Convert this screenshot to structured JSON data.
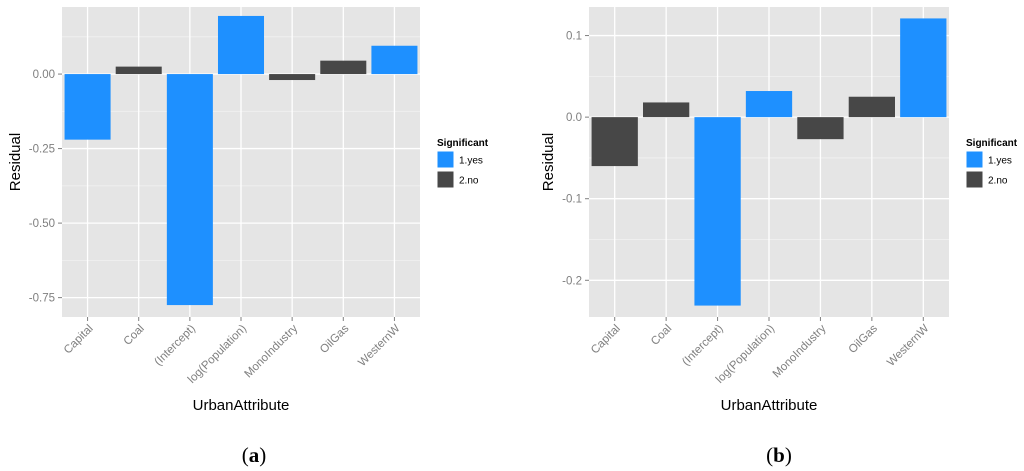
{
  "figure": {
    "panels": [
      {
        "caption_letter": "a",
        "caption_open": "(",
        "caption_close": ")"
      },
      {
        "caption_letter": "b",
        "caption_open": "(",
        "caption_close": ")"
      }
    ]
  },
  "colors": {
    "panel_bg": "#e5e5e5",
    "grid": "#ffffff",
    "yes": "#1e90ff",
    "no": "#474747"
  },
  "chart_data": [
    {
      "type": "bar",
      "categories": [
        "Capital",
        "Coal",
        "(Intercept)",
        "log(Population)",
        "MonoIndustry",
        "OilGas",
        "WesternW"
      ],
      "values": [
        -0.22,
        0.025,
        -0.775,
        0.195,
        -0.02,
        0.045,
        0.095
      ],
      "significant": [
        "1.yes",
        "2.no",
        "1.yes",
        "1.yes",
        "2.no",
        "2.no",
        "1.yes"
      ],
      "yticks": [
        0.0,
        -0.25,
        -0.5,
        -0.75
      ],
      "ytick_labels": [
        "0.00",
        "-0.25",
        "-0.50",
        "-0.75"
      ],
      "ylim": [
        -0.815,
        0.225
      ],
      "xlabel": "UrbanAttribute",
      "ylabel": "Residual",
      "legend": {
        "title": "Significant",
        "entries": [
          "1.yes",
          "2.no"
        ],
        "position": "right"
      },
      "grid": true
    },
    {
      "type": "bar",
      "categories": [
        "Capital",
        "Coal",
        "(Intercept)",
        "log(Population)",
        "MonoIndustry",
        "OilGas",
        "WesternW"
      ],
      "values": [
        -0.06,
        0.018,
        -0.231,
        0.032,
        -0.027,
        0.025,
        0.121
      ],
      "significant": [
        "2.no",
        "2.no",
        "1.yes",
        "1.yes",
        "2.no",
        "2.no",
        "1.yes"
      ],
      "yticks": [
        0.1,
        0.0,
        -0.1,
        -0.2
      ],
      "ytick_labels": [
        "0.1",
        "0.0",
        "-0.1",
        "-0.2"
      ],
      "ylim": [
        -0.245,
        0.135
      ],
      "xlabel": "UrbanAttribute",
      "ylabel": "Residual",
      "legend": {
        "title": "Significant",
        "entries": [
          "1.yes",
          "2.no"
        ],
        "position": "right"
      },
      "grid": true
    }
  ]
}
